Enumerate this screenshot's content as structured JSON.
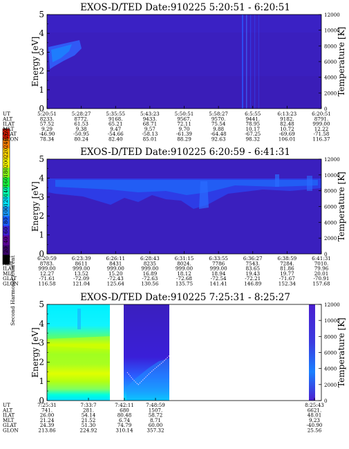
{
  "figure": {
    "colorbar": {
      "label": "Second Harmonic Current",
      "ticks": [
        "0",
        "20",
        "40",
        "60",
        "80",
        "100",
        "120",
        "140",
        "160",
        "180",
        "200",
        "220",
        "240",
        "260"
      ],
      "colors": [
        "#000000",
        "#3a006a",
        "#5a0096",
        "#3c1fd0",
        "#1a5cff",
        "#1a9cff",
        "#00e6ff",
        "#00ffb0",
        "#1aff40",
        "#8cff1a",
        "#ffff00",
        "#ffd400",
        "#ff8000",
        "#ff2000"
      ]
    },
    "orbit_row_labels": [
      "UT",
      "ALT",
      "ILAT",
      "MLT",
      "GLAT",
      "GLON"
    ]
  },
  "chart_data": [
    {
      "type": "heatmap",
      "title": "EXOS-D/TED   Date:910225  5:20:51 - 6:20:51",
      "ylabel": "Energy [eV]",
      "y2label": "Temperature [K]",
      "ylim": [
        0,
        5
      ],
      "y2lim": [
        0,
        12000
      ],
      "yticks": [
        "0",
        "1",
        "2",
        "3",
        "4",
        "5"
      ],
      "y2ticks": [
        "0",
        "2000",
        "4000",
        "6000",
        "8000",
        "10000",
        "12000"
      ],
      "background": "#3a1fbe",
      "orbit": [
        [
          "5:20:51",
          "8233.",
          "57.52",
          "9.29",
          "-46.90",
          "78.34"
        ],
        [
          "5:28:27",
          "8772.",
          "61.53",
          "9.38",
          "-50.95",
          "80.24"
        ],
        [
          "5:35:55",
          "9168.",
          "65.21",
          "9.47",
          "-54.66",
          "82.40"
        ],
        [
          "5:43:23",
          "9433.",
          "68.71",
          "9.57",
          "-58.13",
          "85.01"
        ],
        [
          "5:50:51",
          "9567.",
          "72.11",
          "9.70",
          "-61.39",
          "88.29"
        ],
        [
          "5:58:27",
          "9570.",
          "75.54",
          "9.88",
          "-64.48",
          "92.63"
        ],
        [
          "6:5:55",
          "9441.",
          "78.95",
          "10.17",
          "-67.25",
          "98.32"
        ],
        [
          "6:13:23",
          "9182.",
          "82.48",
          "10.72",
          "-69.69",
          "106.01"
        ],
        [
          "6:20:51",
          "8791.",
          "999.00",
          "12.22",
          "-71.58",
          "116.37"
        ]
      ]
    },
    {
      "type": "heatmap",
      "title": "EXOS-D/TED   Date:910225  6:20:59 - 6:41:31",
      "ylabel": "Energy [eV]",
      "y2label": "Temperature [K]",
      "ylim": [
        0,
        5
      ],
      "y2lim": [
        0,
        12000
      ],
      "yticks": [
        "0",
        "1",
        "2",
        "3",
        "4",
        "5"
      ],
      "y2ticks": [
        "0",
        "2000",
        "4000",
        "6000",
        "8000",
        "10000",
        "12000"
      ],
      "background": "#3a1fbe",
      "orbit": [
        [
          "6:20:59",
          "8783.",
          "999.00",
          "12.27",
          "-71.61",
          "116.58"
        ],
        [
          "6:23:39",
          "8611",
          "999.00",
          "13.52",
          "-72.09",
          "121.04"
        ],
        [
          "6:26:11",
          "8431",
          "999.00",
          "15.20",
          "-72.43",
          "125.64"
        ],
        [
          "6:28:43",
          "8235",
          "999.00",
          "16.89",
          "-72.63",
          "130.56"
        ],
        [
          "6:31:15",
          "8024.",
          "999.00",
          "18.12",
          "-72.68",
          "135.75"
        ],
        [
          "6:33:55",
          "7786",
          "999.00",
          "18.94",
          "-72.54",
          "141.41"
        ],
        [
          "6:36:27",
          "7543.",
          "83.65",
          "19.43",
          "-72.21",
          "146.89"
        ],
        [
          "6:38:59",
          "7284.",
          "81.86",
          "19.77",
          "-71.67",
          "152.34"
        ],
        [
          "6:41:31",
          "7010.",
          "79.96",
          "20.01",
          "-70.91",
          "157.68"
        ]
      ]
    },
    {
      "type": "heatmap",
      "title": "EXOS-D/TED   Date:910225  7:25:31 - 8:25:27",
      "ylabel": "Energy [eV]",
      "y2label": "Temperature [K]",
      "ylim": [
        0,
        5
      ],
      "y2lim": [
        0,
        12000
      ],
      "yticks": [
        "0",
        "1",
        "2",
        "3",
        "4",
        "5"
      ],
      "y2ticks": [
        "0",
        "2000",
        "4000",
        "6000",
        "8000",
        "10000",
        "12000"
      ],
      "background": "#ffffff",
      "orbit": [
        [
          "7:25:31",
          "741.",
          "26.00",
          "21.24",
          "24.39",
          "213.86"
        ],
        [
          "7:33:7",
          "281.",
          "54.14",
          "21.52",
          "51.30",
          "224.92"
        ],
        [
          "7:42:11",
          "680",
          "80.48",
          "6.74",
          "74.79",
          "310.14"
        ],
        [
          "7:48:59",
          "1507.",
          "58.72",
          "8.71",
          "60.00",
          "357.32"
        ],
        [
          "8:25:43",
          "6621.",
          "48.01",
          "9.23",
          "-40.90",
          "25.56"
        ]
      ]
    }
  ]
}
